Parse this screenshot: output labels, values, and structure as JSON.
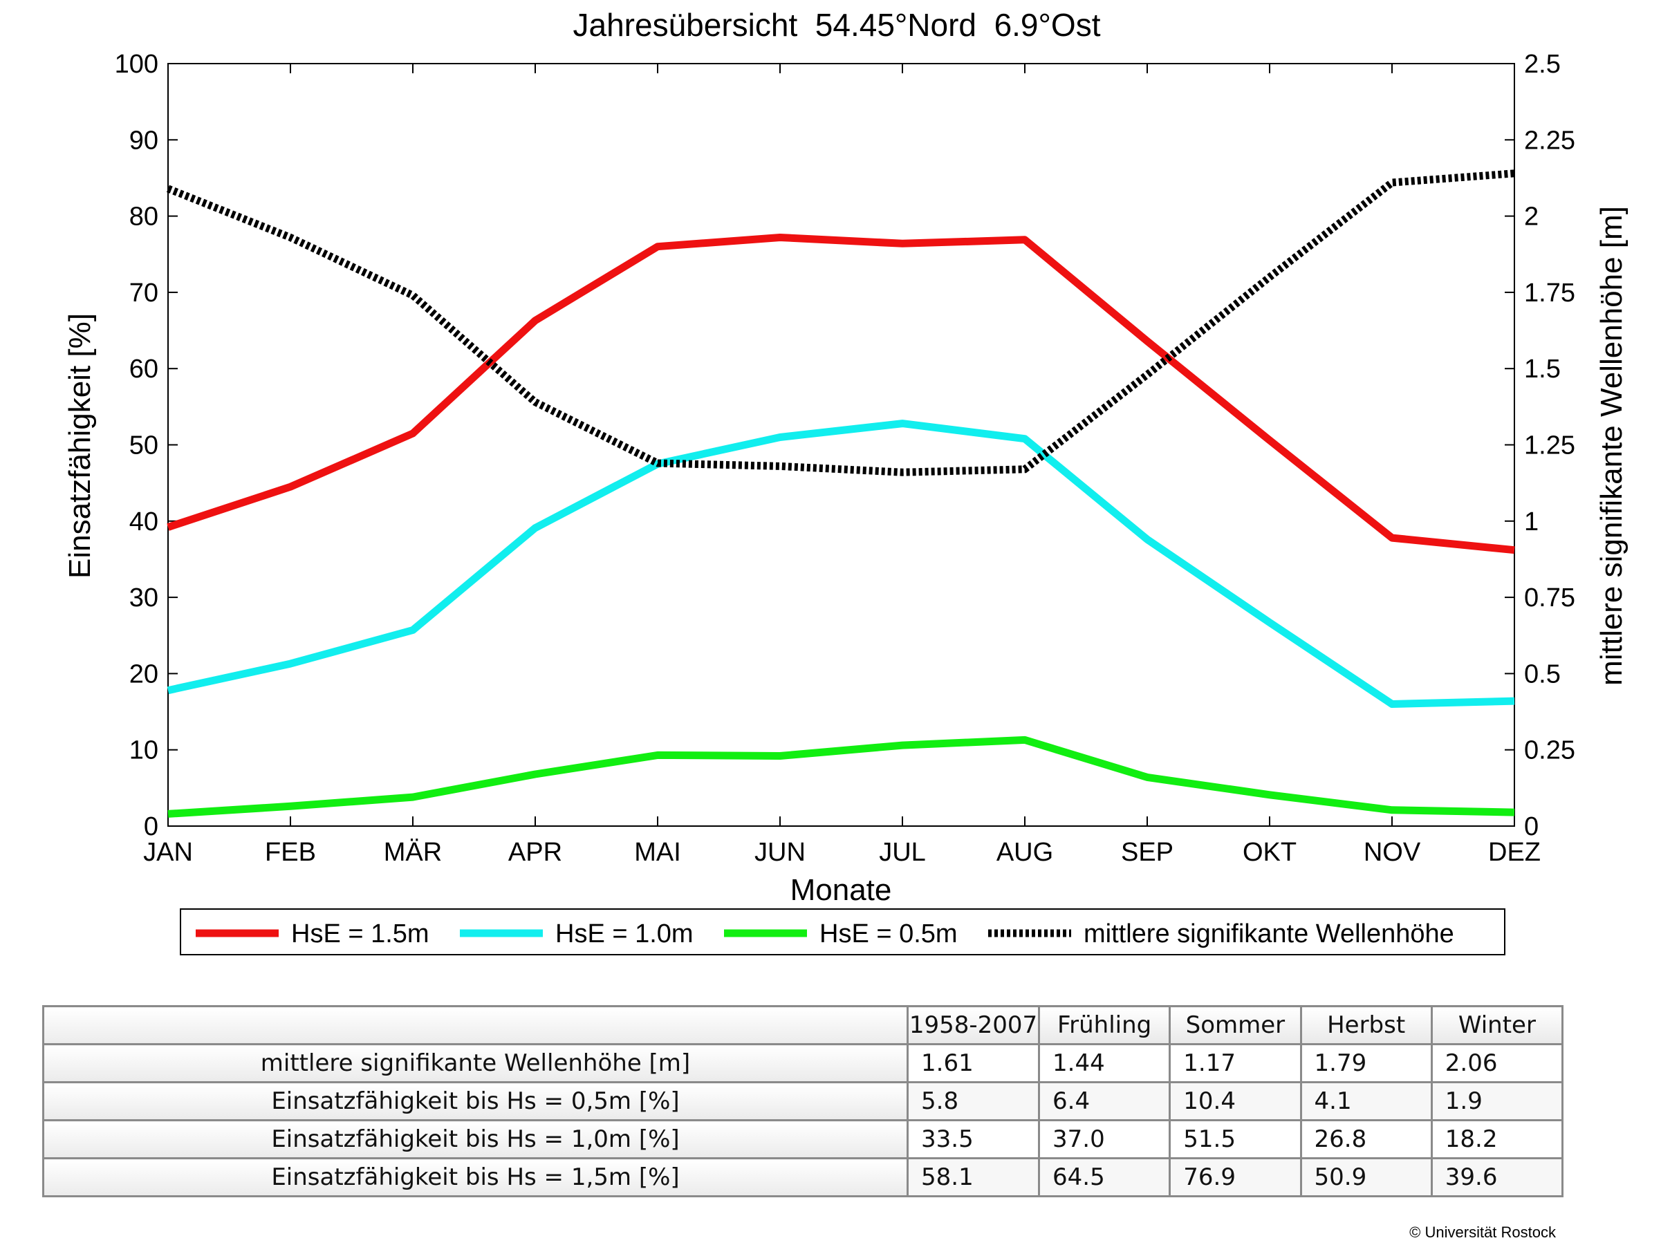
{
  "chart_data": {
    "type": "line",
    "title": "Jahresübersicht  54.45°Nord  6.9°Ost",
    "xlabel": "Monate",
    "ylabel": "Einsatzfähigkeit [%]",
    "ylabel_right": "mittlere signifikante Wellenhöhe [m]",
    "categories": [
      "JAN",
      "FEB",
      "MÄR",
      "APR",
      "MAI",
      "JUN",
      "JUL",
      "AUG",
      "SEP",
      "OKT",
      "NOV",
      "DEZ"
    ],
    "ylim": [
      0,
      100
    ],
    "ylim_right": [
      0,
      2.5
    ],
    "yticks": [
      "0",
      "10",
      "20",
      "30",
      "40",
      "50",
      "60",
      "70",
      "80",
      "90",
      "100"
    ],
    "yticks_right": [
      "0",
      "0.25",
      "0.5",
      "0.75",
      "1",
      "1.25",
      "1.5",
      "1.75",
      "2",
      "2.25",
      "2.5"
    ],
    "grid": false,
    "legend_position": "bottom",
    "series": [
      {
        "name": "HsE = 1.5m",
        "axis": "left",
        "color": "#ee1111",
        "style": "solid",
        "values": [
          39.2,
          44.5,
          51.5,
          66.3,
          76.0,
          77.2,
          76.4,
          76.9,
          63.6,
          50.6,
          37.8,
          36.2
        ]
      },
      {
        "name": "HsE = 1.0m",
        "axis": "left",
        "color": "#11eeee",
        "style": "solid",
        "values": [
          17.8,
          21.3,
          25.7,
          39.1,
          47.5,
          51.0,
          52.8,
          50.8,
          37.6,
          26.7,
          16.0,
          16.4
        ]
      },
      {
        "name": "HsE = 0.5m",
        "axis": "left",
        "color": "#11ee11",
        "style": "solid",
        "values": [
          1.6,
          2.6,
          3.8,
          6.8,
          9.3,
          9.2,
          10.6,
          11.3,
          6.4,
          4.1,
          2.1,
          1.8
        ]
      },
      {
        "name": "mittlere signifikante Wellenhöhe",
        "axis": "right",
        "color": "#000000",
        "style": "dotted",
        "values": [
          2.09,
          1.93,
          1.74,
          1.39,
          1.19,
          1.18,
          1.16,
          1.17,
          1.48,
          1.8,
          2.11,
          2.14
        ]
      }
    ]
  },
  "table": {
    "headers": [
      "1958-2007",
      "Frühling",
      "Sommer",
      "Herbst",
      "Winter"
    ],
    "rows": [
      {
        "label": "mittlere signifikante Wellenhöhe [m]",
        "values": [
          "1.61",
          "1.44",
          "1.17",
          "1.79",
          "2.06"
        ]
      },
      {
        "label": "Einsatzfähigkeit bis Hs = 0,5m [%]",
        "values": [
          "5.8",
          "6.4",
          "10.4",
          "4.1",
          "1.9"
        ]
      },
      {
        "label": "Einsatzfähigkeit bis Hs = 1,0m [%]",
        "values": [
          "33.5",
          "37.0",
          "51.5",
          "26.8",
          "18.2"
        ]
      },
      {
        "label": "Einsatzfähigkeit bis Hs = 1,5m [%]",
        "values": [
          "58.1",
          "64.5",
          "76.9",
          "50.9",
          "39.6"
        ]
      }
    ]
  },
  "copyright": "© Universität Rostock"
}
